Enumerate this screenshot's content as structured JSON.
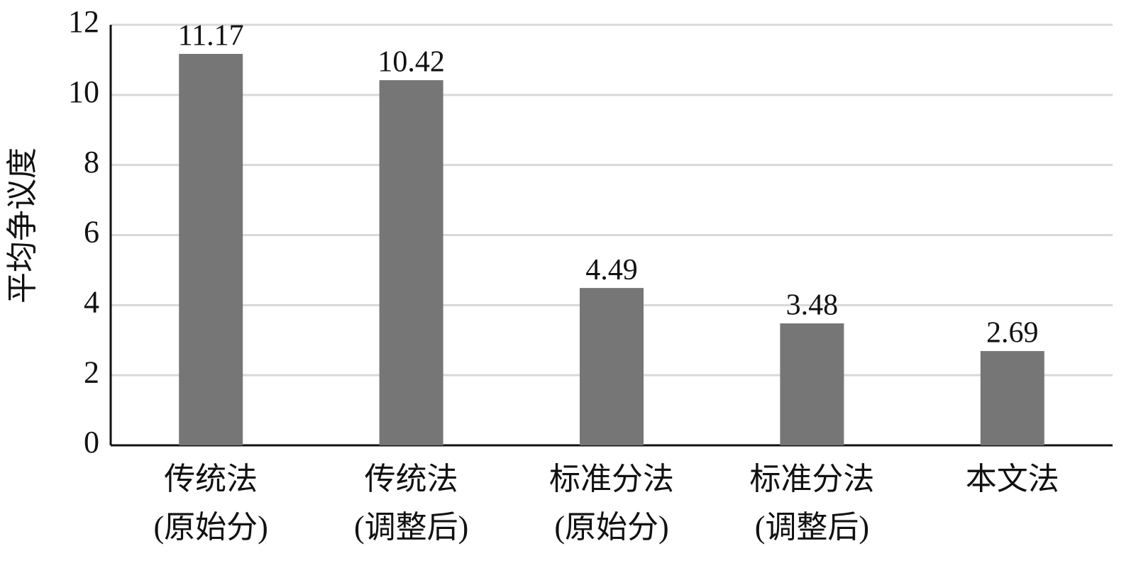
{
  "chart_data": {
    "type": "bar",
    "y_label": "平均争议度",
    "categories": [
      [
        "传统法",
        "(原始分)"
      ],
      [
        "传统法",
        "(调整后)"
      ],
      [
        "标准分法",
        "(原始分)"
      ],
      [
        "标准分法",
        "(调整后)"
      ],
      [
        "本文法"
      ]
    ],
    "values": [
      11.17,
      10.42,
      4.49,
      3.48,
      2.69
    ],
    "color": "#767676",
    "ylim": [
      0,
      12
    ],
    "yticks": [
      0,
      2,
      4,
      6,
      8,
      10,
      12
    ],
    "grid": true
  }
}
